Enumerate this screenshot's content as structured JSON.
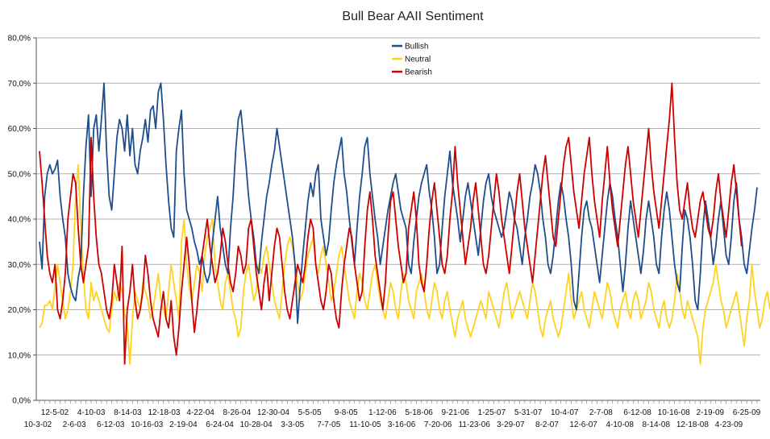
{
  "chart_data": {
    "type": "line",
    "title": "Bull Bear AAII Sentiment",
    "xlabel": "",
    "ylabel": "",
    "ylim": [
      0,
      80
    ],
    "yticks": [
      "0,0%",
      "10,0%",
      "20,0%",
      "30,0%",
      "40,0%",
      "50,0%",
      "60,0%",
      "70,0%",
      "80,0%"
    ],
    "xticks_top": [
      "12-5-02",
      "4-10-03",
      "8-14-03",
      "12-18-03",
      "4-22-04",
      "8-26-04",
      "12-30-04",
      "5-5-05",
      "9-8-05",
      "1-12-06",
      "5-18-06",
      "9-21-06",
      "1-25-07",
      "5-31-07",
      "10-4-07",
      "2-7-08",
      "6-12-08",
      "10-16-08",
      "2-19-09",
      "6-25-09"
    ],
    "xticks_bottom": [
      "10-3-02",
      "2-6-03",
      "6-12-03",
      "10-16-03",
      "2-19-04",
      "6-24-04",
      "10-28-04",
      "3-3-05",
      "7-7-05",
      "11-10-05",
      "3-16-06",
      "7-20-06",
      "11-23-06",
      "3-29-07",
      "8-2-07",
      "12-6-07",
      "4-10-08",
      "8-14-08",
      "12-18-08",
      "4-23-09"
    ],
    "grid": true,
    "legend_position": "top-center",
    "colors": {
      "Bullish": "#1f4e8c",
      "Neutral": "#ffd21f",
      "Bearish": "#cc0000",
      "grid": "#b0b0b0"
    },
    "series": [
      {
        "name": "Bullish",
        "values": [
          35,
          29,
          45,
          50,
          52,
          50,
          51,
          53,
          45,
          40,
          36,
          28,
          25,
          23,
          22,
          27,
          30,
          45,
          56,
          63,
          45,
          60,
          63,
          55,
          62,
          70,
          55,
          45,
          42,
          50,
          58,
          62,
          60,
          55,
          63,
          54,
          60,
          52,
          50,
          55,
          58,
          62,
          57,
          64,
          65,
          60,
          68,
          70,
          62,
          52,
          44,
          38,
          36,
          55,
          60,
          64,
          50,
          42,
          40,
          38,
          35,
          33,
          30,
          32,
          28,
          26,
          28,
          35,
          40,
          45,
          38,
          34,
          30,
          28,
          38,
          45,
          55,
          62,
          64,
          58,
          52,
          45,
          40,
          36,
          30,
          28,
          35,
          40,
          45,
          48,
          52,
          55,
          60,
          56,
          52,
          48,
          44,
          40,
          36,
          30,
          17,
          25,
          32,
          38,
          44,
          48,
          45,
          50,
          52,
          40,
          36,
          32,
          35,
          42,
          48,
          52,
          55,
          58,
          50,
          46,
          40,
          35,
          30,
          38,
          45,
          50,
          56,
          58,
          50,
          45,
          40,
          36,
          30,
          34,
          38,
          42,
          45,
          48,
          50,
          46,
          42,
          40,
          38,
          30,
          28,
          35,
          40,
          45,
          48,
          50,
          52,
          46,
          42,
          36,
          28,
          30,
          38,
          45,
          50,
          55,
          48,
          44,
          40,
          35,
          40,
          45,
          48,
          44,
          40,
          36,
          32,
          38,
          44,
          48,
          50,
          45,
          42,
          40,
          38,
          36,
          38,
          42,
          46,
          44,
          40,
          38,
          34,
          30,
          36,
          40,
          45,
          48,
          52,
          50,
          46,
          40,
          36,
          30,
          28,
          32,
          38,
          44,
          48,
          45,
          40,
          36,
          30,
          22,
          20,
          28,
          36,
          42,
          44,
          40,
          38,
          34,
          30,
          26,
          32,
          38,
          44,
          48,
          45,
          40,
          36,
          30,
          24,
          30,
          38,
          44,
          40,
          36,
          32,
          28,
          33,
          40,
          44,
          40,
          36,
          30,
          28,
          36,
          42,
          46,
          42,
          36,
          30,
          26,
          24,
          34,
          42,
          40,
          36,
          30,
          22,
          20,
          28,
          38,
          44,
          40,
          36,
          30,
          34,
          40,
          44,
          38,
          32,
          30,
          36,
          44,
          48,
          40,
          36,
          30,
          28,
          33,
          38,
          42,
          47
        ]
      },
      {
        "name": "Neutral",
        "values": [
          16,
          17,
          21,
          21,
          22,
          20,
          25,
          30,
          26,
          22,
          18,
          20,
          24,
          30,
          45,
          52,
          38,
          28,
          20,
          18,
          26,
          22,
          24,
          22,
          20,
          18,
          16,
          15,
          20,
          24,
          22,
          26,
          24,
          19,
          17,
          8,
          18,
          24,
          22,
          20,
          26,
          24,
          22,
          18,
          20,
          24,
          28,
          22,
          20,
          18,
          24,
          30,
          26,
          22,
          18,
          35,
          40,
          30,
          25,
          22,
          26,
          30,
          28,
          24,
          32,
          36,
          38,
          40,
          30,
          26,
          22,
          20,
          26,
          28,
          24,
          20,
          18,
          14,
          16,
          24,
          28,
          30,
          26,
          22,
          24,
          30,
          28,
          32,
          34,
          30,
          26,
          22,
          20,
          18,
          24,
          30,
          34,
          36,
          34,
          30,
          26,
          22,
          24,
          28,
          32,
          34,
          36,
          30,
          28,
          32,
          34,
          30,
          26,
          22,
          24,
          28,
          32,
          34,
          30,
          26,
          22,
          20,
          18,
          24,
          28,
          26,
          22,
          20,
          24,
          28,
          30,
          26,
          22,
          20,
          18,
          22,
          26,
          24,
          20,
          18,
          24,
          28,
          26,
          22,
          20,
          18,
          24,
          26,
          28,
          24,
          20,
          18,
          22,
          26,
          24,
          20,
          18,
          22,
          24,
          20,
          17,
          14,
          18,
          20,
          22,
          18,
          16,
          14,
          16,
          18,
          20,
          22,
          20,
          18,
          24,
          22,
          20,
          18,
          16,
          20,
          24,
          26,
          22,
          18,
          20,
          22,
          24,
          22,
          20,
          18,
          22,
          26,
          24,
          20,
          16,
          14,
          18,
          20,
          22,
          18,
          16,
          14,
          16,
          20,
          24,
          28,
          22,
          18,
          20,
          22,
          24,
          20,
          18,
          16,
          20,
          24,
          22,
          20,
          18,
          22,
          26,
          24,
          20,
          18,
          16,
          20,
          22,
          24,
          20,
          18,
          22,
          24,
          22,
          18,
          20,
          22,
          26,
          24,
          20,
          18,
          16,
          20,
          22,
          18,
          16,
          18,
          22,
          28,
          24,
          20,
          18,
          22,
          20,
          18,
          16,
          14,
          8,
          16,
          20,
          22,
          24,
          26,
          30,
          26,
          22,
          20,
          16,
          18,
          20,
          22,
          24,
          20,
          16,
          12,
          18,
          22,
          30,
          24,
          20,
          16,
          18,
          22,
          24,
          20
        ]
      },
      {
        "name": "Bearish",
        "values": [
          55,
          48,
          40,
          32,
          28,
          26,
          30,
          20,
          18,
          22,
          28,
          40,
          45,
          50,
          48,
          38,
          30,
          26,
          30,
          34,
          58,
          45,
          36,
          30,
          28,
          24,
          20,
          18,
          22,
          30,
          26,
          22,
          34,
          8,
          20,
          24,
          30,
          22,
          18,
          20,
          24,
          32,
          28,
          22,
          18,
          16,
          14,
          20,
          24,
          18,
          16,
          22,
          14,
          10,
          16,
          24,
          30,
          36,
          30,
          22,
          15,
          20,
          26,
          32,
          36,
          40,
          34,
          30,
          26,
          28,
          32,
          38,
          35,
          30,
          26,
          24,
          28,
          34,
          32,
          28,
          30,
          38,
          40,
          34,
          28,
          24,
          20,
          26,
          30,
          22,
          28,
          34,
          38,
          36,
          30,
          24,
          20,
          18,
          22,
          26,
          30,
          28,
          26,
          30,
          36,
          40,
          38,
          30,
          26,
          22,
          20,
          24,
          30,
          28,
          22,
          18,
          16,
          24,
          30,
          34,
          38,
          36,
          30,
          26,
          22,
          24,
          34,
          42,
          46,
          40,
          32,
          28,
          24,
          20,
          26,
          36,
          44,
          46,
          40,
          34,
          30,
          26,
          28,
          38,
          42,
          46,
          40,
          30,
          26,
          24,
          30,
          38,
          44,
          48,
          42,
          36,
          30,
          28,
          32,
          40,
          46,
          56,
          48,
          42,
          36,
          30,
          34,
          38,
          44,
          48,
          42,
          36,
          30,
          28,
          32,
          38,
          44,
          50,
          46,
          40,
          36,
          32,
          28,
          34,
          40,
          46,
          50,
          44,
          38,
          34,
          30,
          26,
          32,
          38,
          44,
          50,
          54,
          48,
          42,
          36,
          34,
          40,
          46,
          52,
          56,
          58,
          52,
          46,
          42,
          38,
          44,
          50,
          54,
          58,
          50,
          44,
          40,
          36,
          44,
          50,
          56,
          48,
          42,
          38,
          34,
          40,
          46,
          52,
          56,
          50,
          44,
          40,
          36,
          42,
          48,
          54,
          60,
          52,
          46,
          42,
          38,
          44,
          50,
          56,
          62,
          70,
          58,
          48,
          42,
          40,
          44,
          48,
          42,
          38,
          36,
          40,
          44,
          46,
          42,
          38,
          36,
          40,
          46,
          50,
          44,
          40,
          36,
          42,
          48,
          52,
          46,
          40,
          34
        ]
      }
    ]
  }
}
